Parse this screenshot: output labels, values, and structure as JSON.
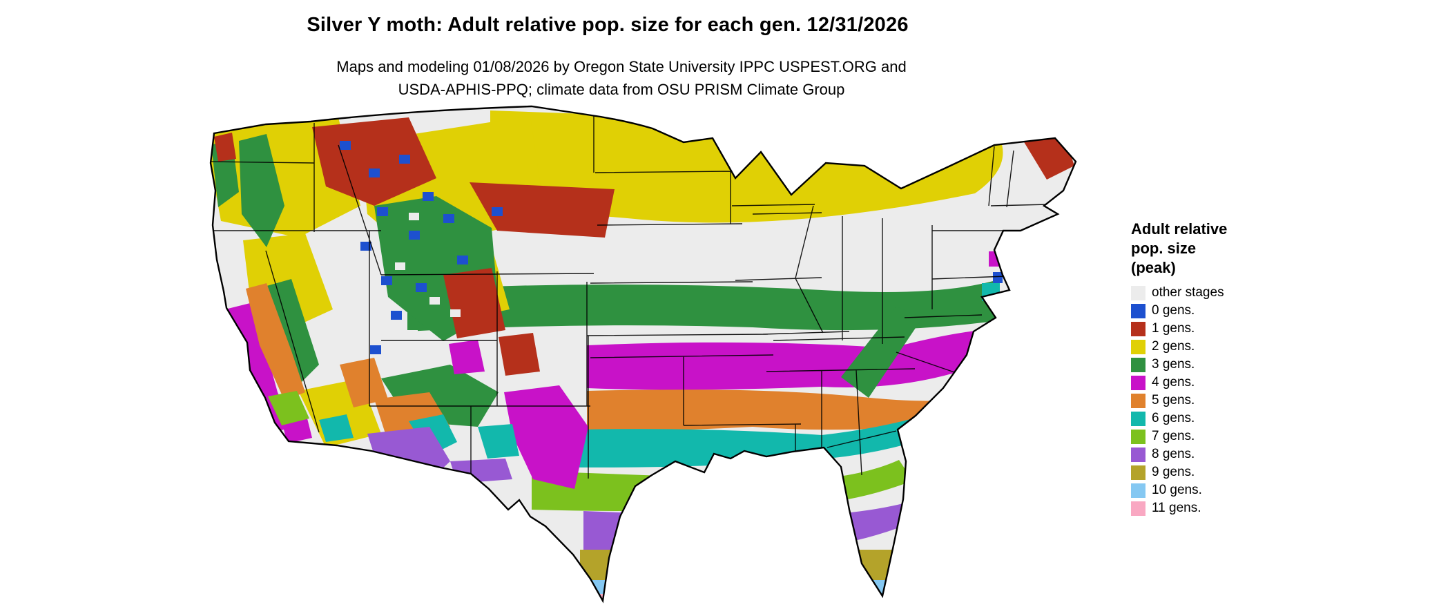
{
  "header": {
    "title": "Silver Y moth: Adult relative pop. size for each gen. 12/31/2026",
    "subtitle_line1": "Maps and modeling 01/08/2026 by Oregon State University IPPC USPEST.ORG and",
    "subtitle_line2": "USDA-APHIS-PPQ; climate data from OSU PRISM Climate Group"
  },
  "legend": {
    "title_lines": [
      "Adult relative",
      "pop. size",
      "(peak)"
    ],
    "items": [
      {
        "key": "other",
        "label": "other stages",
        "color": "#ececec"
      },
      {
        "key": "g0",
        "label": "0 gens.",
        "color": "#1d50cf"
      },
      {
        "key": "g1",
        "label": "1 gens.",
        "color": "#b5301b"
      },
      {
        "key": "g2",
        "label": "2 gens.",
        "color": "#e0d005"
      },
      {
        "key": "g3",
        "label": "3 gens.",
        "color": "#2f9140"
      },
      {
        "key": "g4",
        "label": "4 gens.",
        "color": "#c812c8"
      },
      {
        "key": "g5",
        "label": "5 gens.",
        "color": "#e0812d"
      },
      {
        "key": "g6",
        "label": "6 gens.",
        "color": "#12b8ac"
      },
      {
        "key": "g7",
        "label": "7 gens.",
        "color": "#7cc11e"
      },
      {
        "key": "g8",
        "label": "8 gens.",
        "color": "#9859d3"
      },
      {
        "key": "g9",
        "label": "9 gens.",
        "color": "#b4a32a"
      },
      {
        "key": "g10",
        "label": "10 gens.",
        "color": "#85c8f2"
      },
      {
        "key": "g11",
        "label": "11 gens.",
        "color": "#f9a8c2"
      }
    ]
  }
}
